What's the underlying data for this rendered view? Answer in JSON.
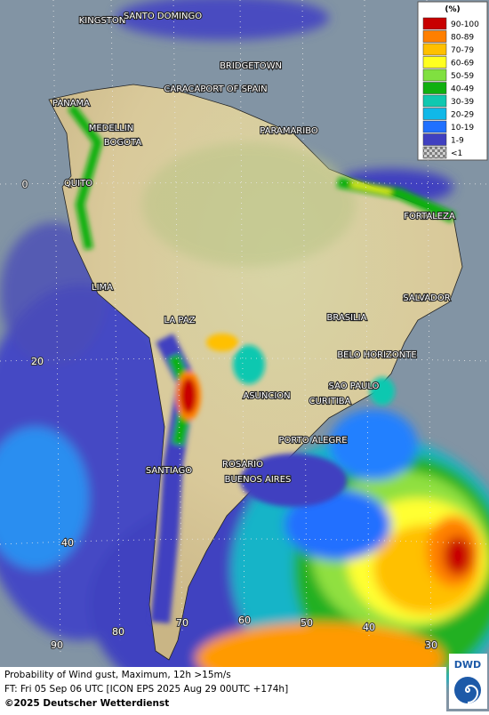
{
  "legend": {
    "title": "(%)",
    "entries": [
      {
        "label": "90-100",
        "color": "#c80000"
      },
      {
        "label": "80-89",
        "color": "#ff7f00"
      },
      {
        "label": "70-79",
        "color": "#ffc000"
      },
      {
        "label": "60-69",
        "color": "#ffff20"
      },
      {
        "label": "50-59",
        "color": "#80e040"
      },
      {
        "label": "40-49",
        "color": "#10b010"
      },
      {
        "label": "30-39",
        "color": "#10c8b0"
      },
      {
        "label": "20-29",
        "color": "#10b8e8"
      },
      {
        "label": "10-19",
        "color": "#2070ff"
      },
      {
        "label": "1-9",
        "color": "#4040c0"
      },
      {
        "label": "<1",
        "color": "#a0a0a0"
      }
    ]
  },
  "cities": [
    "KINGSTON",
    "SANTO DOMINGO",
    "BRIDGETOWN",
    "CARACAS",
    "PORT OF SPAIN",
    "PANAMA",
    "MEDELLIN",
    "BOGOTA",
    "PARAMARIBO",
    "QUITO",
    "FORTALEZA",
    "LIMA",
    "SALVADOR",
    "LA PAZ",
    "BRASILIA",
    "BELO HORIZONTE",
    "SAO PAULO",
    "ASUNCION",
    "CURITIBA",
    "PORTO ALEGRE",
    "ROSARIO",
    "SANTIAGO",
    "BUENOS AIRES"
  ],
  "latitude_labels": [
    "0",
    "20",
    "40"
  ],
  "longitude_labels": [
    "90",
    "80",
    "70",
    "60",
    "50",
    "40",
    "30"
  ],
  "footer": {
    "line1": "Probability of Wind gust, Maximum, 12h >15m/s",
    "line2": "FT: Fri 05 Sep 06 UTC [ICON EPS 2025 Aug 29 00UTC +174h]",
    "copyright": "©2025 Deutscher Wetterdienst",
    "logo": "DWD"
  }
}
